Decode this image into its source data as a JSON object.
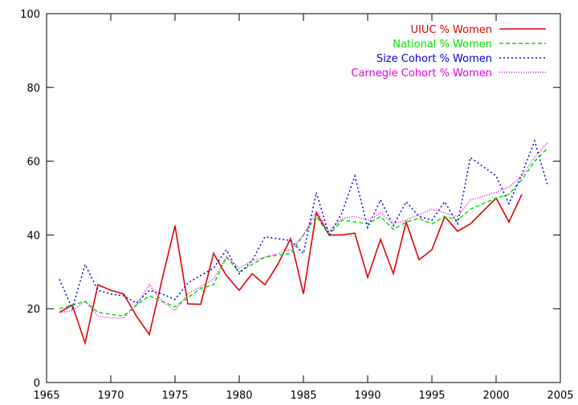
{
  "chart_data": {
    "type": "line",
    "title": "",
    "xlabel": "",
    "ylabel": "",
    "xlim": [
      1965,
      2005
    ],
    "ylim": [
      0,
      100
    ],
    "xticks": [
      1965,
      1970,
      1975,
      1980,
      1985,
      1990,
      1995,
      2000,
      2005
    ],
    "yticks": [
      0,
      20,
      40,
      60,
      80,
      100
    ],
    "grid": false,
    "legend_position": "top-right",
    "series": [
      {
        "name": "UIUC % Women",
        "color": "#e00000",
        "dash": "solid",
        "x": [
          1966,
          1967,
          1968,
          1969,
          1970,
          1971,
          1972,
          1973,
          1974,
          1975,
          1976,
          1977,
          1978,
          1979,
          1980,
          1981,
          1982,
          1983,
          1984,
          1985,
          1986,
          1987,
          1988,
          1989,
          1990,
          1991,
          1992,
          1993,
          1994,
          1995,
          1996,
          1997,
          1998,
          1999,
          2000,
          2001,
          2002
        ],
        "y": [
          19,
          21,
          10.7,
          26.5,
          25,
          24,
          18,
          13,
          28,
          42.5,
          21.3,
          21.2,
          35,
          29,
          25,
          29.5,
          26.5,
          32,
          39,
          24,
          46,
          40,
          40,
          40.5,
          28.5,
          38.8,
          29.5,
          43.5,
          33.3,
          36,
          45,
          41,
          43,
          46.5,
          50,
          43.5,
          51
        ]
      },
      {
        "name": "National % Women",
        "color": "#00e000",
        "dash": "dashed",
        "x": [
          1966,
          1967,
          1968,
          1969,
          1970,
          1971,
          1972,
          1973,
          1974,
          1975,
          1976,
          1977,
          1978,
          1979,
          1980,
          1981,
          1982,
          1983,
          1984,
          1985,
          1986,
          1987,
          1988,
          1989,
          1990,
          1991,
          1992,
          1993,
          1994,
          1995,
          1996,
          1997,
          1998,
          1999,
          2000,
          2001,
          2002,
          2003,
          2004
        ],
        "y": [
          20,
          21,
          22,
          19,
          18.5,
          18,
          21,
          23.5,
          22,
          20.5,
          23,
          25.5,
          26.5,
          34,
          30,
          32,
          34,
          34.5,
          35,
          40,
          45,
          40,
          44,
          43.5,
          43,
          45,
          41.5,
          43.5,
          44.5,
          43,
          45,
          44,
          47,
          48.5,
          50,
          51,
          55,
          60,
          63.5
        ]
      },
      {
        "name": "Size Cohort % Women",
        "color": "#0000e0",
        "dash": "dotted",
        "x": [
          1966,
          1967,
          1968,
          1969,
          1970,
          1971,
          1972,
          1973,
          1974,
          1975,
          1976,
          1977,
          1978,
          1979,
          1980,
          1981,
          1982,
          1983,
          1984,
          1985,
          1986,
          1987,
          1988,
          1989,
          1990,
          1991,
          1992,
          1993,
          1994,
          1995,
          1996,
          1997,
          1998,
          1999,
          2000,
          2001,
          2002,
          2003,
          2004
        ],
        "y": [
          28,
          20,
          32,
          25,
          24,
          23.5,
          21.5,
          25,
          24,
          22.5,
          27,
          29,
          31,
          36,
          29.5,
          33,
          39.5,
          39,
          38.5,
          35,
          51.5,
          40,
          46,
          56,
          42,
          49.5,
          42.5,
          49,
          45,
          44,
          49,
          43,
          61,
          58.5,
          56,
          48.5,
          56.5,
          65.5,
          53.5
        ]
      },
      {
        "name": "Carnegie Cohort % Women",
        "color": "#e000e0",
        "dash": "fine-dotted",
        "x": [
          1966,
          1967,
          1968,
          1969,
          1970,
          1971,
          1972,
          1973,
          1974,
          1975,
          1976,
          1977,
          1978,
          1979,
          1980,
          1981,
          1982,
          1983,
          1984,
          1985,
          1986,
          1987,
          1988,
          1989,
          1990,
          1991,
          1992,
          1993,
          1994,
          1995,
          1996,
          1997,
          1998,
          1999,
          2000,
          2001,
          2002,
          2003,
          2004
        ],
        "y": [
          19,
          19.5,
          22,
          18,
          17.5,
          17.5,
          21,
          26.5,
          22,
          19.5,
          24,
          26,
          28,
          34,
          31,
          33,
          34,
          35,
          36,
          40,
          46.5,
          41,
          44.5,
          45,
          44,
          46,
          43,
          44,
          45.5,
          47,
          46,
          45,
          49.5,
          50.5,
          51.5,
          53,
          56,
          61,
          65
        ]
      }
    ]
  }
}
